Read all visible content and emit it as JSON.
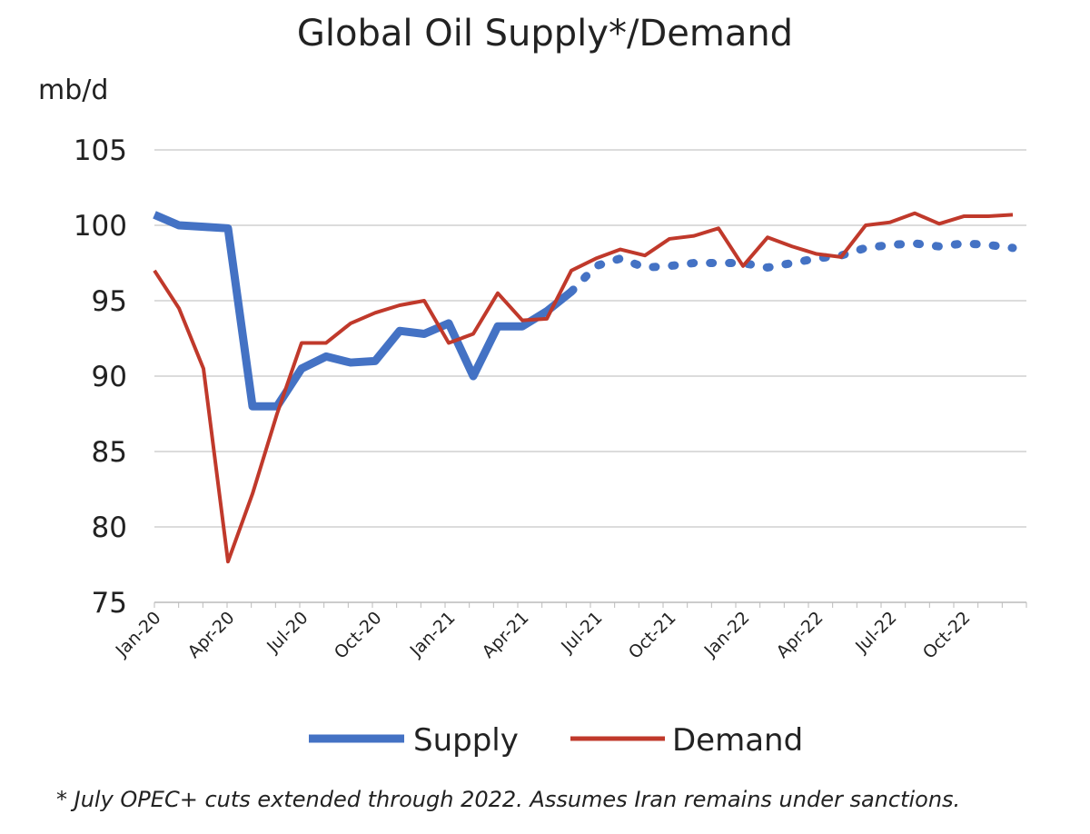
{
  "chart_data": {
    "type": "line",
    "title": "Global Oil Supply*/Demand",
    "ylabel": "mb/d",
    "ylim": [
      75,
      105
    ],
    "yticks": [
      75,
      80,
      85,
      90,
      95,
      100,
      105
    ],
    "grid": true,
    "legend_placement": "bottom",
    "x": [
      "Jan-20",
      "Feb-20",
      "Mar-20",
      "Apr-20",
      "May-20",
      "Jun-20",
      "Jul-20",
      "Aug-20",
      "Sep-20",
      "Oct-20",
      "Nov-20",
      "Dec-20",
      "Jan-21",
      "Feb-21",
      "Mar-21",
      "Apr-21",
      "May-21",
      "Jun-21",
      "Jul-21",
      "Aug-21",
      "Sep-21",
      "Oct-21",
      "Nov-21",
      "Dec-21",
      "Jan-22",
      "Feb-22",
      "Mar-22",
      "Apr-22",
      "May-22",
      "Jun-22",
      "Jul-22",
      "Aug-22",
      "Sep-22",
      "Oct-22",
      "Nov-22",
      "Dec-22"
    ],
    "xtick_labels": [
      "Jan-20",
      "Apr-20",
      "Jul-20",
      "Oct-20",
      "Jan-21",
      "Apr-21",
      "Jul-21",
      "Oct-21",
      "Jan-22",
      "Apr-22",
      "Jul-22",
      "Oct-22"
    ],
    "series": [
      {
        "name": "Supply",
        "color": "#4472c4",
        "dotted_from": "Jun-21",
        "values": [
          100.7,
          100.0,
          99.9,
          99.8,
          88.0,
          88.0,
          90.5,
          91.3,
          90.9,
          91.0,
          93.0,
          92.8,
          93.5,
          90.0,
          93.3,
          93.3,
          94.3,
          95.6,
          97.3,
          97.8,
          97.2,
          97.3,
          97.5,
          97.5,
          97.5,
          97.2,
          97.5,
          97.8,
          98.0,
          98.5,
          98.7,
          98.8,
          98.6,
          98.8,
          98.7,
          98.5
        ]
      },
      {
        "name": "Demand",
        "color": "#c0392b",
        "values": [
          97.0,
          94.5,
          90.5,
          77.7,
          82.2,
          87.5,
          92.2,
          92.2,
          93.5,
          94.2,
          94.7,
          95.0,
          92.2,
          92.8,
          95.5,
          93.7,
          93.8,
          97.0,
          97.8,
          98.4,
          98.0,
          99.1,
          99.3,
          99.8,
          97.3,
          99.2,
          98.6,
          98.1,
          97.9,
          100.0,
          100.2,
          100.8,
          100.1,
          100.6,
          100.6,
          100.7
        ]
      }
    ],
    "footnote": "* July OPEC+ cuts extended through 2022. Assumes Iran remains under sanctions."
  }
}
